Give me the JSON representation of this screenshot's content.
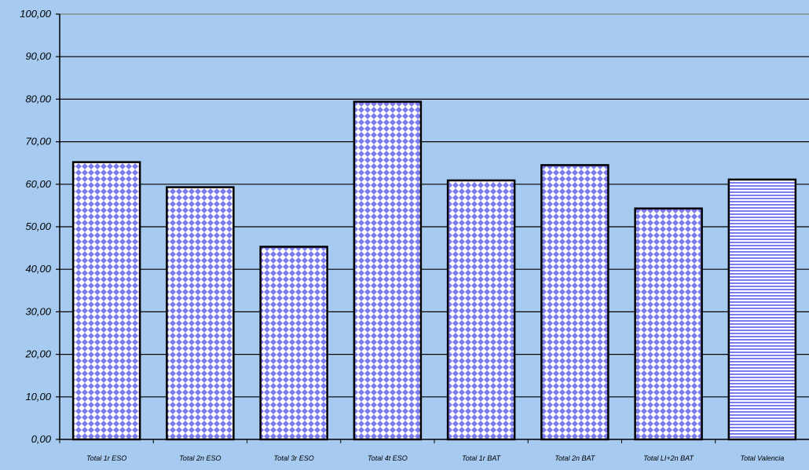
{
  "chart_data": {
    "type": "bar",
    "categories": [
      "Total 1r ESO",
      "Total 2n ESO",
      "Total 3r ESO",
      "Total 4t ESO",
      "Total 1r BAT",
      "Total 2n BAT",
      "Total LI+2n BAT",
      "Total Valencia"
    ],
    "values": [
      65.2,
      59.3,
      45.3,
      79.4,
      60.9,
      64.5,
      54.3,
      61.1
    ],
    "title": "",
    "xlabel": "",
    "ylabel": "",
    "ylim": [
      0,
      100
    ],
    "y_ticks": [
      "0,00",
      "10,00",
      "20,00",
      "30,00",
      "40,00",
      "50,00",
      "60,00",
      "70,00",
      "80,00",
      "90,00",
      "100,00"
    ],
    "grid": true,
    "legend": "none",
    "bar_patterns": [
      "diamond",
      "diamond",
      "diamond",
      "diamond",
      "diamond",
      "diamond",
      "diamond",
      "horizontal-stripes"
    ],
    "colors": {
      "background": "#a6caf0",
      "bar_fill": "#ffffff",
      "bar_pattern": "#7b7bef",
      "bar_stroke": "#000000",
      "grid": "#000000"
    }
  }
}
